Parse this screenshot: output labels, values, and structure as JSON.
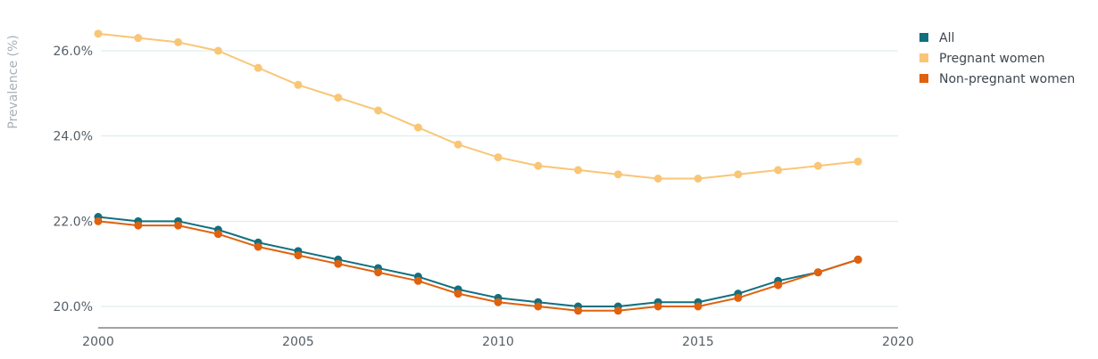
{
  "chart_data": {
    "type": "line",
    "ylabel": "Prevalence (%)",
    "xlabel": "",
    "xlim": [
      2000,
      2020
    ],
    "ylim": [
      19.5,
      26.7
    ],
    "x_ticks": [
      "2000",
      "2005",
      "2010",
      "2015",
      "2020"
    ],
    "y_ticks": [
      "20.0%",
      "22.0%",
      "24.0%",
      "26.0%"
    ],
    "grid": "horizontal",
    "legend_position": "top-right",
    "x": [
      2000,
      2001,
      2002,
      2003,
      2004,
      2005,
      2006,
      2007,
      2008,
      2009,
      2010,
      2011,
      2012,
      2013,
      2014,
      2015,
      2016,
      2017,
      2018,
      2019
    ],
    "series": [
      {
        "name": "All",
        "color": "#10707f",
        "values": [
          22.1,
          22.0,
          22.0,
          21.8,
          21.5,
          21.3,
          21.1,
          20.9,
          20.7,
          20.4,
          20.2,
          20.1,
          20.0,
          20.0,
          20.1,
          20.1,
          20.3,
          20.6,
          20.8,
          21.1
        ]
      },
      {
        "name": "Pregnant women",
        "color": "#f9c676",
        "values": [
          26.4,
          26.3,
          26.2,
          26.0,
          25.6,
          25.2,
          24.9,
          24.6,
          24.2,
          23.8,
          23.5,
          23.3,
          23.2,
          23.1,
          23.0,
          23.0,
          23.1,
          23.2,
          23.3,
          23.4
        ]
      },
      {
        "name": "Non-pregnant women",
        "color": "#e0610e",
        "values": [
          22.0,
          21.9,
          21.9,
          21.7,
          21.4,
          21.2,
          21.0,
          20.8,
          20.6,
          20.3,
          20.1,
          20.0,
          19.9,
          19.9,
          20.0,
          20.0,
          20.2,
          20.5,
          20.8,
          21.1
        ]
      }
    ]
  }
}
